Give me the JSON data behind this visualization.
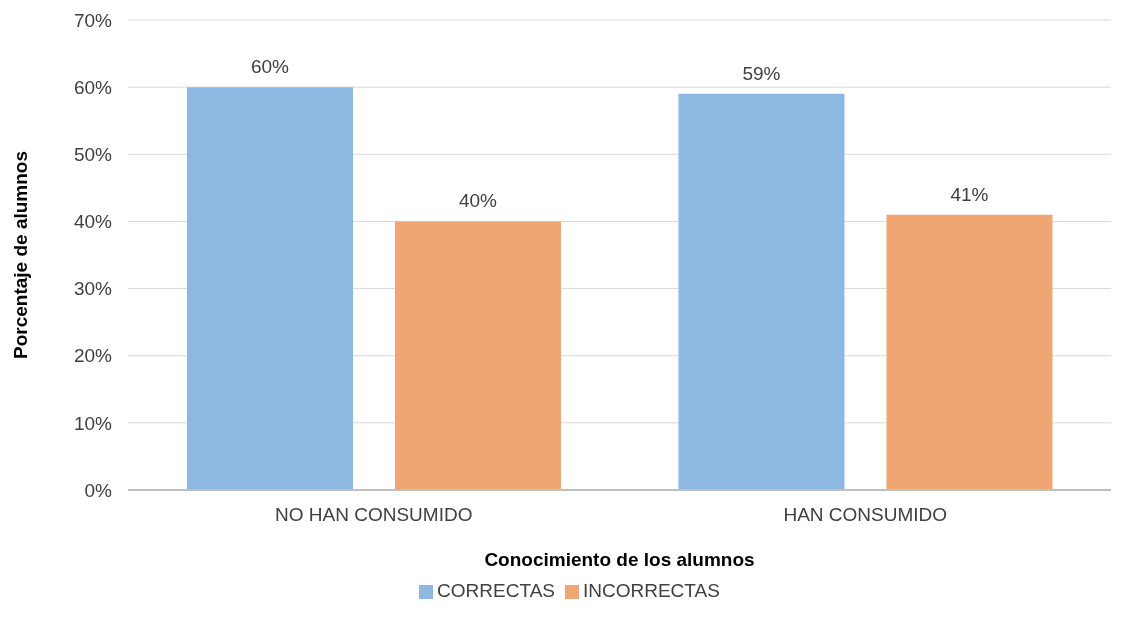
{
  "chart_data": {
    "type": "bar",
    "xlabel": "Conocimiento de los alumnos",
    "ylabel": "Porcentaje de alumnos",
    "categories": [
      "NO HAN CONSUMIDO",
      "HAN CONSUMIDO"
    ],
    "series": [
      {
        "name": "CORRECTAS",
        "color": "#8db8e2",
        "values": [
          60,
          59
        ],
        "value_labels": [
          "60%",
          "59%"
        ]
      },
      {
        "name": "INCORRECTAS",
        "color": "#f0a672",
        "values": [
          40,
          41
        ],
        "value_labels": [
          "40%",
          "41%"
        ]
      }
    ],
    "ylim": [
      0,
      70
    ],
    "yticks": [
      {
        "value": 0,
        "label": "0%"
      },
      {
        "value": 10,
        "label": "10%"
      },
      {
        "value": 20,
        "label": "20%"
      },
      {
        "value": 30,
        "label": "30%"
      },
      {
        "value": 40,
        "label": "40%"
      },
      {
        "value": 50,
        "label": "50%"
      },
      {
        "value": 60,
        "label": "60%"
      },
      {
        "value": 70,
        "label": "70%"
      }
    ],
    "grid": "y",
    "legend": "bottom"
  }
}
